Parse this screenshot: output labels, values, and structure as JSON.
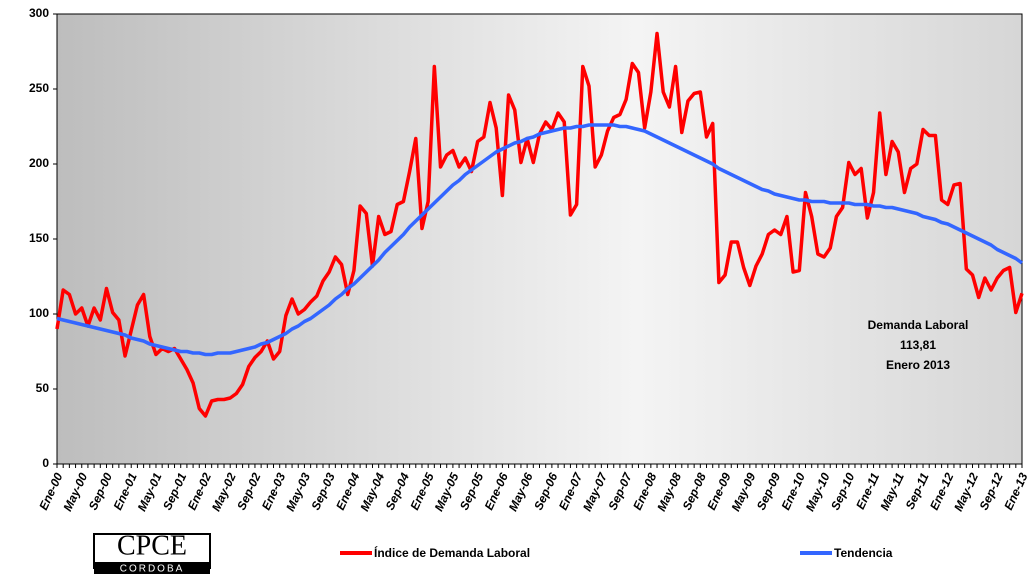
{
  "chart_data": {
    "type": "line",
    "categories": [
      "Ene-00",
      null,
      null,
      null,
      "May-00",
      null,
      null,
      null,
      "Sep-00",
      null,
      null,
      null,
      "Ene-01",
      null,
      null,
      null,
      "May-01",
      null,
      null,
      null,
      "Sep-01",
      null,
      null,
      null,
      "Ene-02",
      null,
      null,
      null,
      "May-02",
      null,
      null,
      null,
      "Sep-02",
      null,
      null,
      null,
      "Ene-03",
      null,
      null,
      null,
      "May-03",
      null,
      null,
      null,
      "Sep-03",
      null,
      null,
      null,
      "Ene-04",
      null,
      null,
      null,
      "May-04",
      null,
      null,
      null,
      "Sep-04",
      null,
      null,
      null,
      "Ene-05",
      null,
      null,
      null,
      "May-05",
      null,
      null,
      null,
      "Sep-05",
      null,
      null,
      null,
      "Ene-06",
      null,
      null,
      null,
      "May-06",
      null,
      null,
      null,
      "Sep-06",
      null,
      null,
      null,
      "Ene-07",
      null,
      null,
      null,
      "May-07",
      null,
      null,
      null,
      "Sep-07",
      null,
      null,
      null,
      "Ene-08",
      null,
      null,
      null,
      "May-08",
      null,
      null,
      null,
      "Sep-08",
      null,
      null,
      null,
      "Ene-09",
      null,
      null,
      null,
      "May-09",
      null,
      null,
      null,
      "Sep-09",
      null,
      null,
      null,
      "Ene-10",
      null,
      null,
      null,
      "May-10",
      null,
      null,
      null,
      "Sep-10",
      null,
      null,
      null,
      "Ene-11",
      null,
      null,
      null,
      "May-11",
      null,
      null,
      null,
      "Sep-11",
      null,
      null,
      null,
      "Ene-12",
      null,
      null,
      null,
      "May-12",
      null,
      null,
      null,
      "Sep-12",
      null,
      null,
      null,
      "Ene-13"
    ],
    "series": [
      {
        "name": "Índice de Demanda Laboral",
        "color": "#ff0000",
        "values": [
          90,
          116,
          113,
          100,
          104,
          92,
          104,
          96,
          117,
          101,
          96,
          72,
          89,
          106,
          113,
          85,
          73,
          77,
          75,
          77,
          70,
          63,
          54,
          37,
          32,
          42,
          43,
          43,
          44,
          47,
          53,
          65,
          71,
          75,
          82,
          70,
          75,
          99,
          110,
          100,
          103,
          108,
          112,
          122,
          128,
          138,
          133,
          113,
          129,
          172,
          167,
          132,
          165,
          153,
          155,
          173,
          175,
          195,
          217,
          157,
          175,
          265,
          198,
          206,
          209,
          198,
          204,
          195,
          215,
          218,
          241,
          224,
          179,
          246,
          236,
          201,
          217,
          201,
          220,
          228,
          223,
          234,
          228,
          166,
          173,
          265,
          252,
          198,
          206,
          222,
          231,
          233,
          243,
          267,
          261,
          224,
          248,
          287,
          248,
          238,
          265,
          221,
          242,
          247,
          248,
          218,
          227,
          121,
          126,
          148,
          148,
          131,
          119,
          132,
          140,
          153,
          156,
          153,
          165,
          128,
          129,
          181,
          165,
          140,
          138,
          144,
          165,
          171,
          201,
          193,
          197,
          164,
          181,
          234,
          193,
          215,
          208,
          181,
          197,
          200,
          223,
          219,
          219,
          176,
          173,
          186,
          187,
          130,
          126,
          111,
          124,
          116,
          124,
          129,
          131,
          101,
          113.81
        ]
      },
      {
        "name": "Tendencia",
        "color": "#3366ff",
        "values": [
          97,
          96,
          95,
          94,
          93,
          92,
          91,
          90,
          89,
          88,
          87,
          86,
          84,
          83,
          82,
          80,
          79,
          78,
          77,
          76,
          75,
          75,
          74,
          74,
          73,
          73,
          74,
          74,
          74,
          75,
          76,
          77,
          78,
          80,
          81,
          83,
          85,
          87,
          90,
          92,
          95,
          97,
          100,
          103,
          106,
          110,
          113,
          117,
          120,
          124,
          128,
          132,
          136,
          141,
          145,
          149,
          153,
          158,
          162,
          166,
          170,
          174,
          178,
          182,
          186,
          189,
          193,
          196,
          199,
          202,
          205,
          208,
          210,
          212,
          214,
          215,
          217,
          218,
          220,
          221,
          222,
          223,
          224,
          224,
          225,
          225,
          226,
          226,
          226,
          226,
          226,
          225,
          225,
          224,
          223,
          222,
          220,
          218,
          216,
          214,
          212,
          210,
          208,
          206,
          204,
          202,
          200,
          197,
          195,
          193,
          191,
          189,
          187,
          185,
          183,
          182,
          180,
          179,
          178,
          177,
          176,
          176,
          175,
          175,
          175,
          174,
          174,
          174,
          174,
          173,
          173,
          173,
          172,
          172,
          171,
          171,
          170,
          169,
          168,
          167,
          165,
          164,
          163,
          161,
          160,
          158,
          156,
          154,
          152,
          150,
          148,
          146,
          143,
          141,
          139,
          137,
          134
        ]
      }
    ],
    "ylim": [
      0,
      300
    ],
    "yticks": [
      0,
      50,
      100,
      150,
      200,
      250,
      300
    ],
    "annotation": [
      "Demanda Laboral",
      "113,81",
      "Enero 2013"
    ],
    "logo": [
      "CPCE",
      "CORDOBA"
    ]
  }
}
